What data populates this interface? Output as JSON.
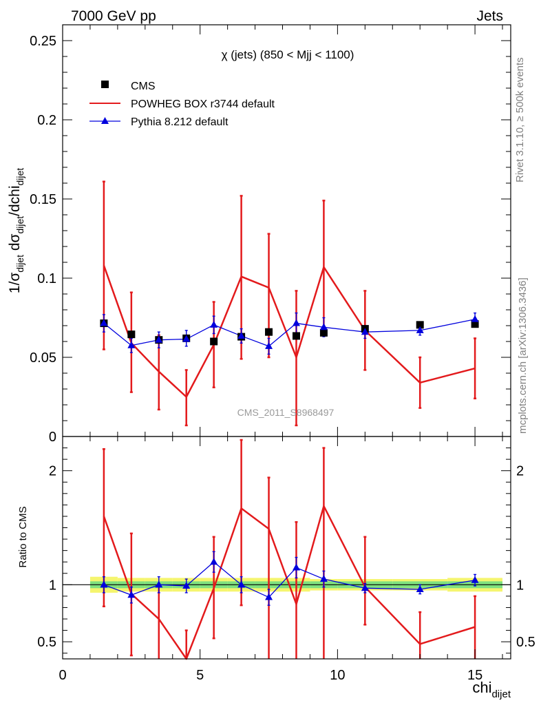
{
  "header": {
    "left_label": "7000 GeV pp",
    "right_label": "Jets"
  },
  "side_text": {
    "rivet": "Rivet 3.1.10, ≥ 500k events",
    "mcplots": "mcplots.cern.ch [arXiv:1306.3436]"
  },
  "colors": {
    "data": "#000000",
    "powheg": "#e31a1c",
    "pythia": "#0000dd",
    "band_inner": "#7fe07f",
    "band_outer": "#f5f56e"
  },
  "chart_data": [
    {
      "type": "scatter",
      "panel": "main",
      "title": "χ (jets) (850 < Mjj < 1100)",
      "watermark": "CMS_2011_S8968497",
      "ylabel": "1/σdijet dσdijet/dchidijet",
      "ylabel_parts": {
        "pre": "1/σ",
        "sub1": "dijet",
        "mid": " dσ",
        "sub2": "dijet",
        "mid2": "/dchi",
        "sub3": "dijet"
      },
      "xlim": [
        0,
        16.3
      ],
      "ylim": [
        0,
        0.26
      ],
      "yticks": [
        0,
        0.05,
        0.1,
        0.15,
        0.2,
        0.25
      ],
      "ytick_labels": [
        "0",
        "0.05",
        "0.1",
        "0.15",
        "0.2",
        "0.25"
      ],
      "legend_position": "top-left",
      "series": [
        {
          "name": "CMS",
          "style": "markers",
          "x": [
            1.5,
            2.5,
            3.5,
            4.5,
            5.5,
            6.5,
            7.5,
            8.5,
            9.5,
            11,
            13,
            15
          ],
          "y": [
            0.0715,
            0.0645,
            0.061,
            0.062,
            0.06,
            0.063,
            0.066,
            0.0635,
            0.0655,
            0.068,
            0.0705,
            0.071
          ]
        },
        {
          "name": "POWHEG BOX r3744 default",
          "style": "line",
          "x": [
            1.5,
            2.5,
            3.5,
            4.5,
            5.5,
            6.5,
            7.5,
            8.5,
            9.5,
            11,
            13,
            15
          ],
          "y": [
            0.108,
            0.059,
            0.041,
            0.025,
            0.058,
            0.101,
            0.094,
            0.05,
            0.107,
            0.067,
            0.034,
            0.043
          ],
          "err_low": [
            0.055,
            0.028,
            0.017,
            0.007,
            0.031,
            0.049,
            0.05,
            0.007,
            0.064,
            0.042,
            0.018,
            0.024
          ],
          "err_high": [
            0.161,
            0.091,
            0.064,
            0.042,
            0.085,
            0.152,
            0.128,
            0.092,
            0.149,
            0.092,
            0.05,
            0.062
          ]
        },
        {
          "name": "Pythia 8.212 default",
          "style": "line-markers",
          "x": [
            1.5,
            2.5,
            3.5,
            4.5,
            5.5,
            6.5,
            7.5,
            8.5,
            9.5,
            11,
            13,
            15
          ],
          "y": [
            0.0715,
            0.0575,
            0.061,
            0.0615,
            0.0705,
            0.0635,
            0.057,
            0.0715,
            0.069,
            0.066,
            0.067,
            0.074
          ],
          "err_low": [
            0.066,
            0.053,
            0.056,
            0.057,
            0.065,
            0.059,
            0.052,
            0.065,
            0.063,
            0.062,
            0.064,
            0.07
          ],
          "err_high": [
            0.077,
            0.062,
            0.066,
            0.067,
            0.076,
            0.068,
            0.062,
            0.078,
            0.075,
            0.07,
            0.07,
            0.078
          ]
        }
      ]
    },
    {
      "type": "scatter",
      "panel": "ratio",
      "ylabel": "Ratio to CMS",
      "xlabel": "chidijet",
      "xlabel_parts": {
        "main": "chi",
        "sub": "dijet"
      },
      "xlim": [
        0,
        16.3
      ],
      "ylim": [
        0.35,
        2.3
      ],
      "xticks": [
        0,
        5,
        10,
        15
      ],
      "xtick_labels": [
        "0",
        "5",
        "10",
        "15"
      ],
      "yticks": [
        0.5,
        1,
        2
      ],
      "ytick_labels": [
        "0.5",
        "1",
        "2"
      ],
      "band_x": [
        1,
        2,
        3,
        4,
        5,
        6,
        7,
        8,
        9,
        10,
        12,
        14,
        16
      ],
      "band_inner_halfwidth": [
        0.03,
        0.03,
        0.03,
        0.03,
        0.03,
        0.03,
        0.03,
        0.03,
        0.03,
        0.03,
        0.03,
        0.03
      ],
      "band_outer_halfwidth": [
        0.07,
        0.06,
        0.06,
        0.06,
        0.06,
        0.06,
        0.06,
        0.06,
        0.05,
        0.05,
        0.05,
        0.06
      ],
      "series": [
        {
          "name": "POWHEG BOX r3744 default",
          "x": [
            1.5,
            2.5,
            3.5,
            4.5,
            5.5,
            6.5,
            7.5,
            8.5,
            9.5,
            11,
            13,
            15
          ],
          "y": [
            1.6,
            0.92,
            0.7,
            0.3,
            0.97,
            1.67,
            1.49,
            0.83,
            1.69,
            0.98,
            0.48,
            0.63
          ],
          "err_low": [
            0.81,
            0.38,
            0.0,
            0.0,
            0.53,
            0.82,
            0.0,
            0.0,
            0.0,
            0.65,
            0.0,
            0.0
          ],
          "err_high": [
            2.19,
            1.45,
            1.0,
            0.6,
            1.42,
            2.27,
            1.94,
            1.55,
            2.2,
            1.42,
            0.76,
            0.9
          ]
        },
        {
          "name": "Pythia 8.212 default",
          "x": [
            1.5,
            2.5,
            3.5,
            4.5,
            5.5,
            6.5,
            7.5,
            8.5,
            9.5,
            11,
            13,
            15
          ],
          "y": [
            1.0,
            0.91,
            1.0,
            0.99,
            1.2,
            1.0,
            0.89,
            1.15,
            1.05,
            0.97,
            0.96,
            1.04
          ],
          "err_low": [
            0.93,
            0.84,
            0.93,
            0.93,
            1.11,
            0.93,
            0.82,
            1.06,
            0.98,
            0.93,
            0.92,
            0.99
          ],
          "err_high": [
            1.07,
            0.98,
            1.07,
            1.05,
            1.29,
            1.07,
            0.96,
            1.24,
            1.12,
            1.01,
            1.0,
            1.09
          ]
        }
      ]
    }
  ]
}
